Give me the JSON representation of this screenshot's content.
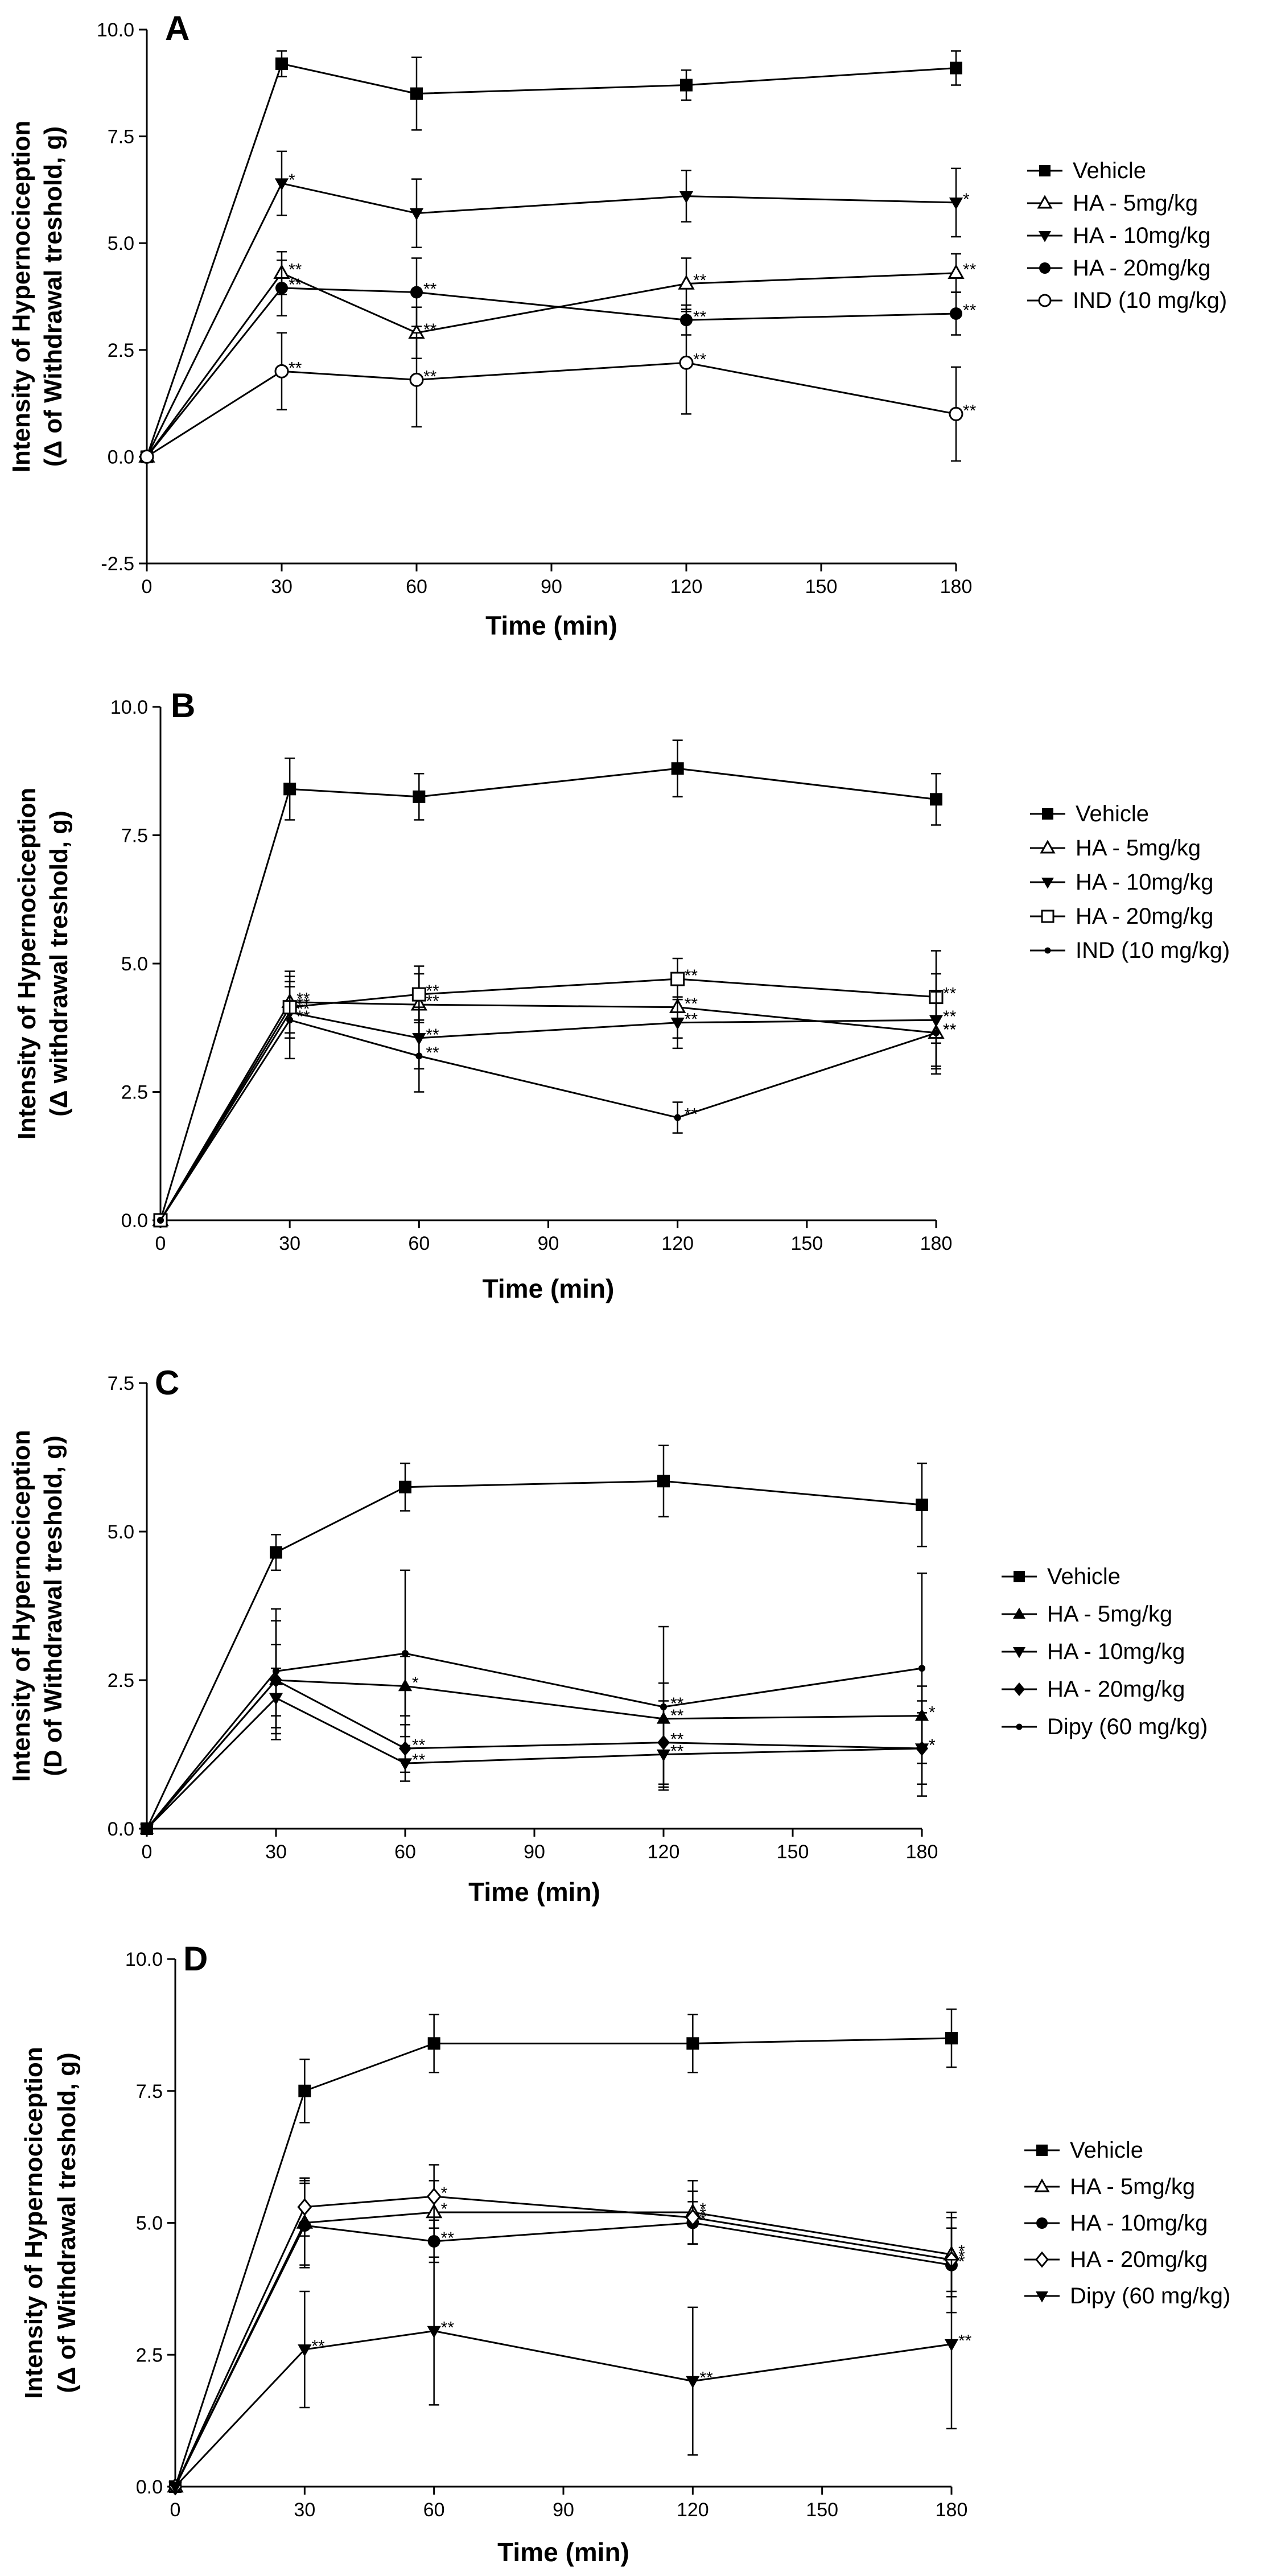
{
  "chart_data": [
    {
      "type": "line",
      "panel_letter": "A",
      "xlabel": "Time (min)",
      "ylabel_line1": "Intensity of Hypernociception",
      "ylabel_line2": "(Δ of Withdrawal treshold, g)",
      "ylim": [
        -2.5,
        10.0
      ],
      "y_ticks": [
        "-2.5",
        "0.0",
        "2.5",
        "5.0",
        "7.5",
        "10.0"
      ],
      "x_ticks": [
        "0",
        "30",
        "60",
        "90",
        "120",
        "150",
        "180"
      ],
      "xlim": [
        0,
        180
      ],
      "x": [
        0,
        30,
        60,
        120,
        180
      ],
      "series": [
        {
          "name": "Vehicle",
          "marker": "square-filled",
          "values": [
            0,
            9.2,
            8.5,
            8.7,
            9.1
          ],
          "errors": [
            0,
            0.3,
            0.85,
            0.35,
            0.4
          ],
          "sig": [
            "",
            "",
            "",
            "",
            ""
          ]
        },
        {
          "name": "HA - 5mg/kg",
          "marker": "triangle-up-open",
          "values": [
            0,
            4.3,
            2.9,
            4.05,
            4.3
          ],
          "errors": [
            0,
            0.5,
            0.6,
            0.6,
            0.45
          ],
          "sig": [
            "",
            "**",
            "**",
            "**",
            "**"
          ]
        },
        {
          "name": "HA - 10mg/kg",
          "marker": "triangle-down-filled",
          "values": [
            0,
            6.4,
            5.7,
            6.1,
            5.95
          ],
          "errors": [
            0,
            0.75,
            0.8,
            0.6,
            0.8
          ],
          "sig": [
            "",
            "*",
            "",
            "",
            "*"
          ]
        },
        {
          "name": "HA - 20mg/kg",
          "marker": "circle-filled",
          "values": [
            0,
            3.95,
            3.85,
            3.2,
            3.35
          ],
          "errors": [
            0,
            0.65,
            0.8,
            0.35,
            0.5
          ],
          "sig": [
            "",
            "**",
            "**",
            "**",
            "**"
          ]
        },
        {
          "name": "IND (10 mg/kg)",
          "marker": "circle-open",
          "values": [
            0,
            2.0,
            1.8,
            2.2,
            1.0
          ],
          "errors": [
            0,
            0.9,
            1.1,
            1.2,
            1.1
          ],
          "sig": [
            "",
            "**",
            "**",
            "**",
            "**"
          ]
        }
      ]
    },
    {
      "type": "line",
      "panel_letter": "B",
      "xlabel": "Time (min)",
      "ylabel_line1": "Intensity of Hypernociception",
      "ylabel_line2": "(Δ withdrawal treshold, g)",
      "ylim": [
        0.0,
        10.0
      ],
      "y_ticks": [
        "0.0",
        "2.5",
        "5.0",
        "7.5",
        "10.0"
      ],
      "x_ticks": [
        "0",
        "30",
        "60",
        "90",
        "120",
        "150",
        "180"
      ],
      "xlim": [
        0,
        180
      ],
      "x": [
        0,
        30,
        60,
        120,
        180
      ],
      "series": [
        {
          "name": "Vehicle",
          "marker": "square-filled",
          "values": [
            0,
            8.4,
            8.25,
            8.8,
            8.2
          ],
          "errors": [
            0,
            0.6,
            0.45,
            0.55,
            0.5
          ],
          "sig": [
            "",
            "",
            "",
            "",
            ""
          ]
        },
        {
          "name": "HA - 5mg/kg",
          "marker": "triangle-up-open",
          "values": [
            0,
            4.25,
            4.2,
            4.15,
            3.65
          ],
          "errors": [
            0,
            0.6,
            0.6,
            0.6,
            0.7
          ],
          "sig": [
            "",
            "**",
            "**",
            "**",
            "**"
          ]
        },
        {
          "name": "HA - 10mg/kg",
          "marker": "triangle-down-filled",
          "values": [
            0,
            4.05,
            3.55,
            3.85,
            3.9
          ],
          "errors": [
            0,
            0.5,
            0.6,
            0.5,
            0.9
          ],
          "sig": [
            "",
            "**",
            "**",
            "**",
            "**"
          ]
        },
        {
          "name": "HA - 20mg/kg",
          "marker": "square-open",
          "values": [
            0,
            4.15,
            4.4,
            4.7,
            4.35
          ],
          "errors": [
            0,
            0.6,
            0.55,
            0.4,
            0.9
          ],
          "sig": [
            "",
            "**",
            "**",
            "**",
            "**"
          ]
        },
        {
          "name": "IND (10 mg/kg)",
          "marker": "dot",
          "values": [
            0,
            3.9,
            3.2,
            2.0,
            3.65
          ],
          "errors": [
            0,
            0.75,
            0.7,
            0.3,
            0.8
          ],
          "sig": [
            "",
            "**",
            "**",
            "**",
            "**"
          ]
        }
      ]
    },
    {
      "type": "line",
      "panel_letter": "C",
      "xlabel": "Time (min)",
      "ylabel_line1": "Intensity of Hypernociception",
      "ylabel_line2": "(D of Withdrawal treshold, g)",
      "ylim": [
        0.0,
        7.5
      ],
      "y_ticks": [
        "0.0",
        "2.5",
        "5.0",
        "7.5"
      ],
      "x_ticks": [
        "0",
        "30",
        "60",
        "90",
        "120",
        "150",
        "180"
      ],
      "xlim": [
        0,
        180
      ],
      "x": [
        0,
        30,
        60,
        120,
        180
      ],
      "series": [
        {
          "name": "Vehicle",
          "marker": "square-filled",
          "values": [
            0,
            4.65,
            5.75,
            5.85,
            5.45
          ],
          "errors": [
            0,
            0.3,
            0.4,
            0.6,
            0.7
          ],
          "sig": [
            "",
            "",
            "",
            "",
            ""
          ]
        },
        {
          "name": "HA - 5mg/kg",
          "marker": "triangle-up-filled",
          "values": [
            0,
            2.5,
            2.4,
            1.85,
            1.9
          ],
          "errors": [
            0,
            1.0,
            0.5,
            0.6,
            0.5
          ],
          "sig": [
            "",
            "",
            "*",
            "**",
            "*"
          ]
        },
        {
          "name": "HA - 10mg/kg",
          "marker": "triangle-down-filled",
          "values": [
            0,
            2.2,
            1.1,
            1.25,
            1.35
          ],
          "errors": [
            0,
            0.5,
            0.3,
            0.6,
            0.6
          ],
          "sig": [
            "",
            "",
            "**",
            "**",
            "*"
          ]
        },
        {
          "name": "HA - 20mg/kg",
          "marker": "diamond-filled",
          "values": [
            0,
            2.5,
            1.35,
            1.45,
            1.35
          ],
          "errors": [
            0,
            0.6,
            0.4,
            0.7,
            0.8
          ],
          "sig": [
            "",
            "",
            "**",
            "**",
            "*"
          ]
        },
        {
          "name": "Dipy (60 mg/kg)",
          "marker": "dot",
          "values": [
            0,
            2.65,
            2.95,
            2.05,
            2.7
          ],
          "errors": [
            0,
            1.05,
            1.4,
            1.35,
            1.6
          ],
          "sig": [
            "",
            "",
            "",
            "**",
            ""
          ]
        }
      ]
    },
    {
      "type": "line",
      "panel_letter": "D",
      "xlabel": "Time (min)",
      "ylabel_line1": "Intensity of Hypernociception",
      "ylabel_line2": "(Δ of Withdrawal treshold, g)",
      "ylim": [
        0.0,
        10.0
      ],
      "y_ticks": [
        "0.0",
        "2.5",
        "5.0",
        "7.5",
        "10.0"
      ],
      "x_ticks": [
        "0",
        "30",
        "60",
        "90",
        "120",
        "150",
        "180"
      ],
      "xlim": [
        0,
        180
      ],
      "x": [
        0,
        30,
        60,
        120,
        180
      ],
      "series": [
        {
          "name": "Vehicle",
          "marker": "square-filled",
          "values": [
            0,
            7.5,
            8.4,
            8.4,
            8.5
          ],
          "errors": [
            0,
            0.6,
            0.55,
            0.55,
            0.55
          ],
          "sig": [
            "",
            "",
            "",
            "",
            ""
          ]
        },
        {
          "name": "HA - 5mg/kg",
          "marker": "triangle-up-open",
          "values": [
            0,
            5.0,
            5.2,
            5.2,
            4.4
          ],
          "errors": [
            0,
            0.8,
            0.6,
            0.6,
            0.8
          ],
          "sig": [
            "",
            "",
            "*",
            "*",
            "*"
          ]
        },
        {
          "name": "HA - 10mg/kg",
          "marker": "circle-filled",
          "values": [
            0,
            4.95,
            4.65,
            5.0,
            4.2
          ],
          "errors": [
            0,
            0.8,
            0.4,
            0.4,
            0.9
          ],
          "sig": [
            "",
            "",
            "**",
            "*",
            "*"
          ]
        },
        {
          "name": "HA - 20mg/kg",
          "marker": "diamond-open",
          "values": [
            0,
            5.3,
            5.5,
            5.1,
            4.3
          ],
          "errors": [
            0,
            0.55,
            0.6,
            0.5,
            0.6
          ],
          "sig": [
            "",
            "",
            "*",
            "*",
            "*"
          ]
        },
        {
          "name": "Dipy (60 mg/kg)",
          "marker": "triangle-down-filled",
          "values": [
            0,
            2.6,
            2.95,
            2.0,
            2.7
          ],
          "errors": [
            0,
            1.1,
            1.4,
            1.4,
            1.6
          ],
          "sig": [
            "",
            "**",
            "**",
            "**",
            "**"
          ]
        }
      ]
    }
  ]
}
